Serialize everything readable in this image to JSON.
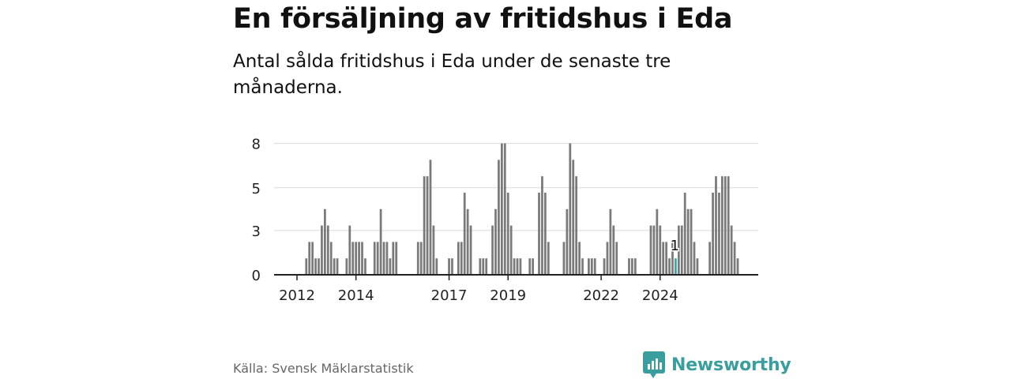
{
  "header": {
    "title": "En försäljning av fritidshus i Eda",
    "subtitle": "Antal sålda fritidshus i Eda under de senaste tre månaderna."
  },
  "footer": {
    "source": "Källa: Svensk Mäklarstatistik",
    "brand": "Newsworthy"
  },
  "colors": {
    "bar": "#7a7a7a",
    "highlight": "#3aa6a6",
    "grid": "#d9d9d9",
    "axis": "#222222",
    "brand": "#3a9e9e"
  },
  "chart_data": {
    "type": "bar",
    "title": "En försäljning av fritidshus i Eda",
    "xlabel": "",
    "ylabel": "",
    "ylim": [
      0,
      9
    ],
    "yticks": [
      0,
      3,
      5,
      8
    ],
    "ytick_values": [
      0,
      2.7,
      5.3,
      8
    ],
    "xticks": [
      {
        "label": "2012",
        "index": 0
      },
      {
        "label": "2014",
        "index": 19
      },
      {
        "label": "2017",
        "index": 49
      },
      {
        "label": "2019",
        "index": 68
      },
      {
        "label": "2022",
        "index": 98
      },
      {
        "label": "2024",
        "index": 117
      }
    ],
    "values": [
      0,
      0,
      0,
      1,
      2,
      2,
      1,
      1,
      3,
      4,
      3,
      2,
      1,
      1,
      0,
      0,
      1,
      3,
      2,
      2,
      2,
      2,
      1,
      0,
      0,
      2,
      2,
      4,
      2,
      2,
      1,
      2,
      2,
      0,
      0,
      0,
      0,
      0,
      0,
      2,
      2,
      6,
      6,
      7,
      3,
      1,
      0,
      0,
      0,
      1,
      1,
      0,
      2,
      2,
      5,
      4,
      3,
      0,
      0,
      1,
      1,
      1,
      0,
      3,
      4,
      7,
      8,
      8,
      5,
      3,
      1,
      1,
      1,
      0,
      0,
      1,
      1,
      0,
      5,
      6,
      5,
      2,
      0,
      0,
      0,
      0,
      2,
      4,
      8,
      7,
      6,
      2,
      1,
      0,
      1,
      1,
      1,
      0,
      0,
      1,
      2,
      4,
      3,
      2,
      0,
      0,
      0,
      1,
      1,
      1,
      0,
      0,
      0,
      0,
      3,
      3,
      4,
      3,
      2,
      2,
      1,
      2,
      1,
      3,
      3,
      5,
      4,
      4,
      2,
      1,
      0,
      0,
      0,
      2,
      5,
      6,
      5,
      6,
      6,
      6,
      3,
      2,
      1
    ],
    "highlight_index": 122,
    "highlight_label": "1"
  }
}
